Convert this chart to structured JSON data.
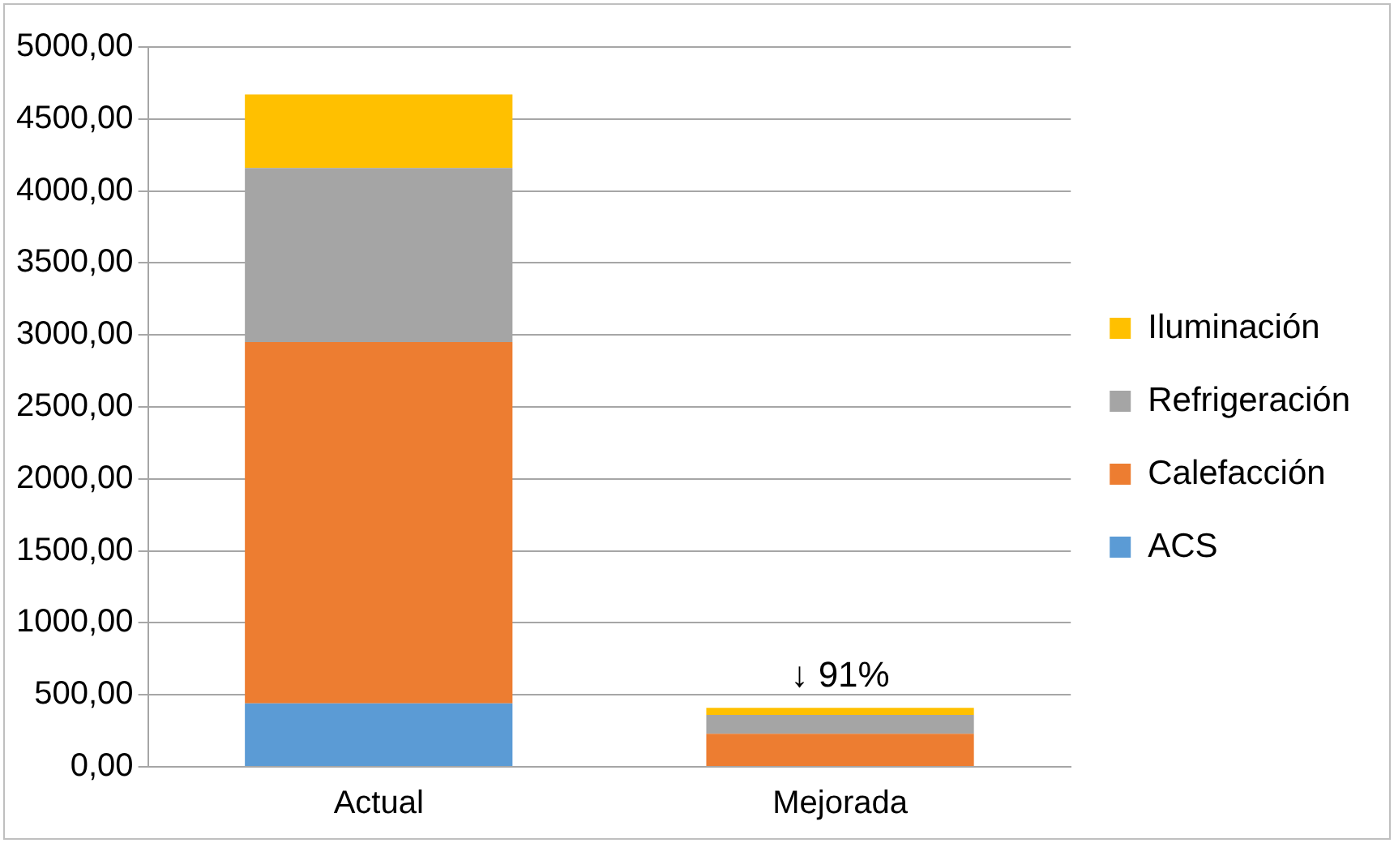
{
  "chart_data": {
    "type": "bar",
    "stacked": true,
    "categories": [
      "Actual",
      "Mejorada"
    ],
    "series": [
      {
        "name": "ACS",
        "color": "#5b9bd5",
        "values": [
          440,
          0
        ]
      },
      {
        "name": "Calefacción",
        "color": "#ed7d31",
        "values": [
          2510,
          230
        ]
      },
      {
        "name": "Refrigeración",
        "color": "#a5a5a5",
        "values": [
          1210,
          130
        ]
      },
      {
        "name": "Iluminación",
        "color": "#ffc000",
        "values": [
          510,
          50
        ]
      }
    ],
    "ylim": [
      0,
      5000
    ],
    "yticks": [
      {
        "value": 0,
        "label": "0,00"
      },
      {
        "value": 500,
        "label": "500,00"
      },
      {
        "value": 1000,
        "label": "1000,00"
      },
      {
        "value": 1500,
        "label": "1500,00"
      },
      {
        "value": 2000,
        "label": "2000,00"
      },
      {
        "value": 2500,
        "label": "2500,00"
      },
      {
        "value": 3000,
        "label": "3000,00"
      },
      {
        "value": 3500,
        "label": "3500,00"
      },
      {
        "value": 4000,
        "label": "4000,00"
      },
      {
        "value": 4500,
        "label": "4500,00"
      },
      {
        "value": 5000,
        "label": "5000,00"
      }
    ],
    "grid": "y",
    "legend": "right",
    "annotations": [
      "↓ 91%"
    ]
  }
}
